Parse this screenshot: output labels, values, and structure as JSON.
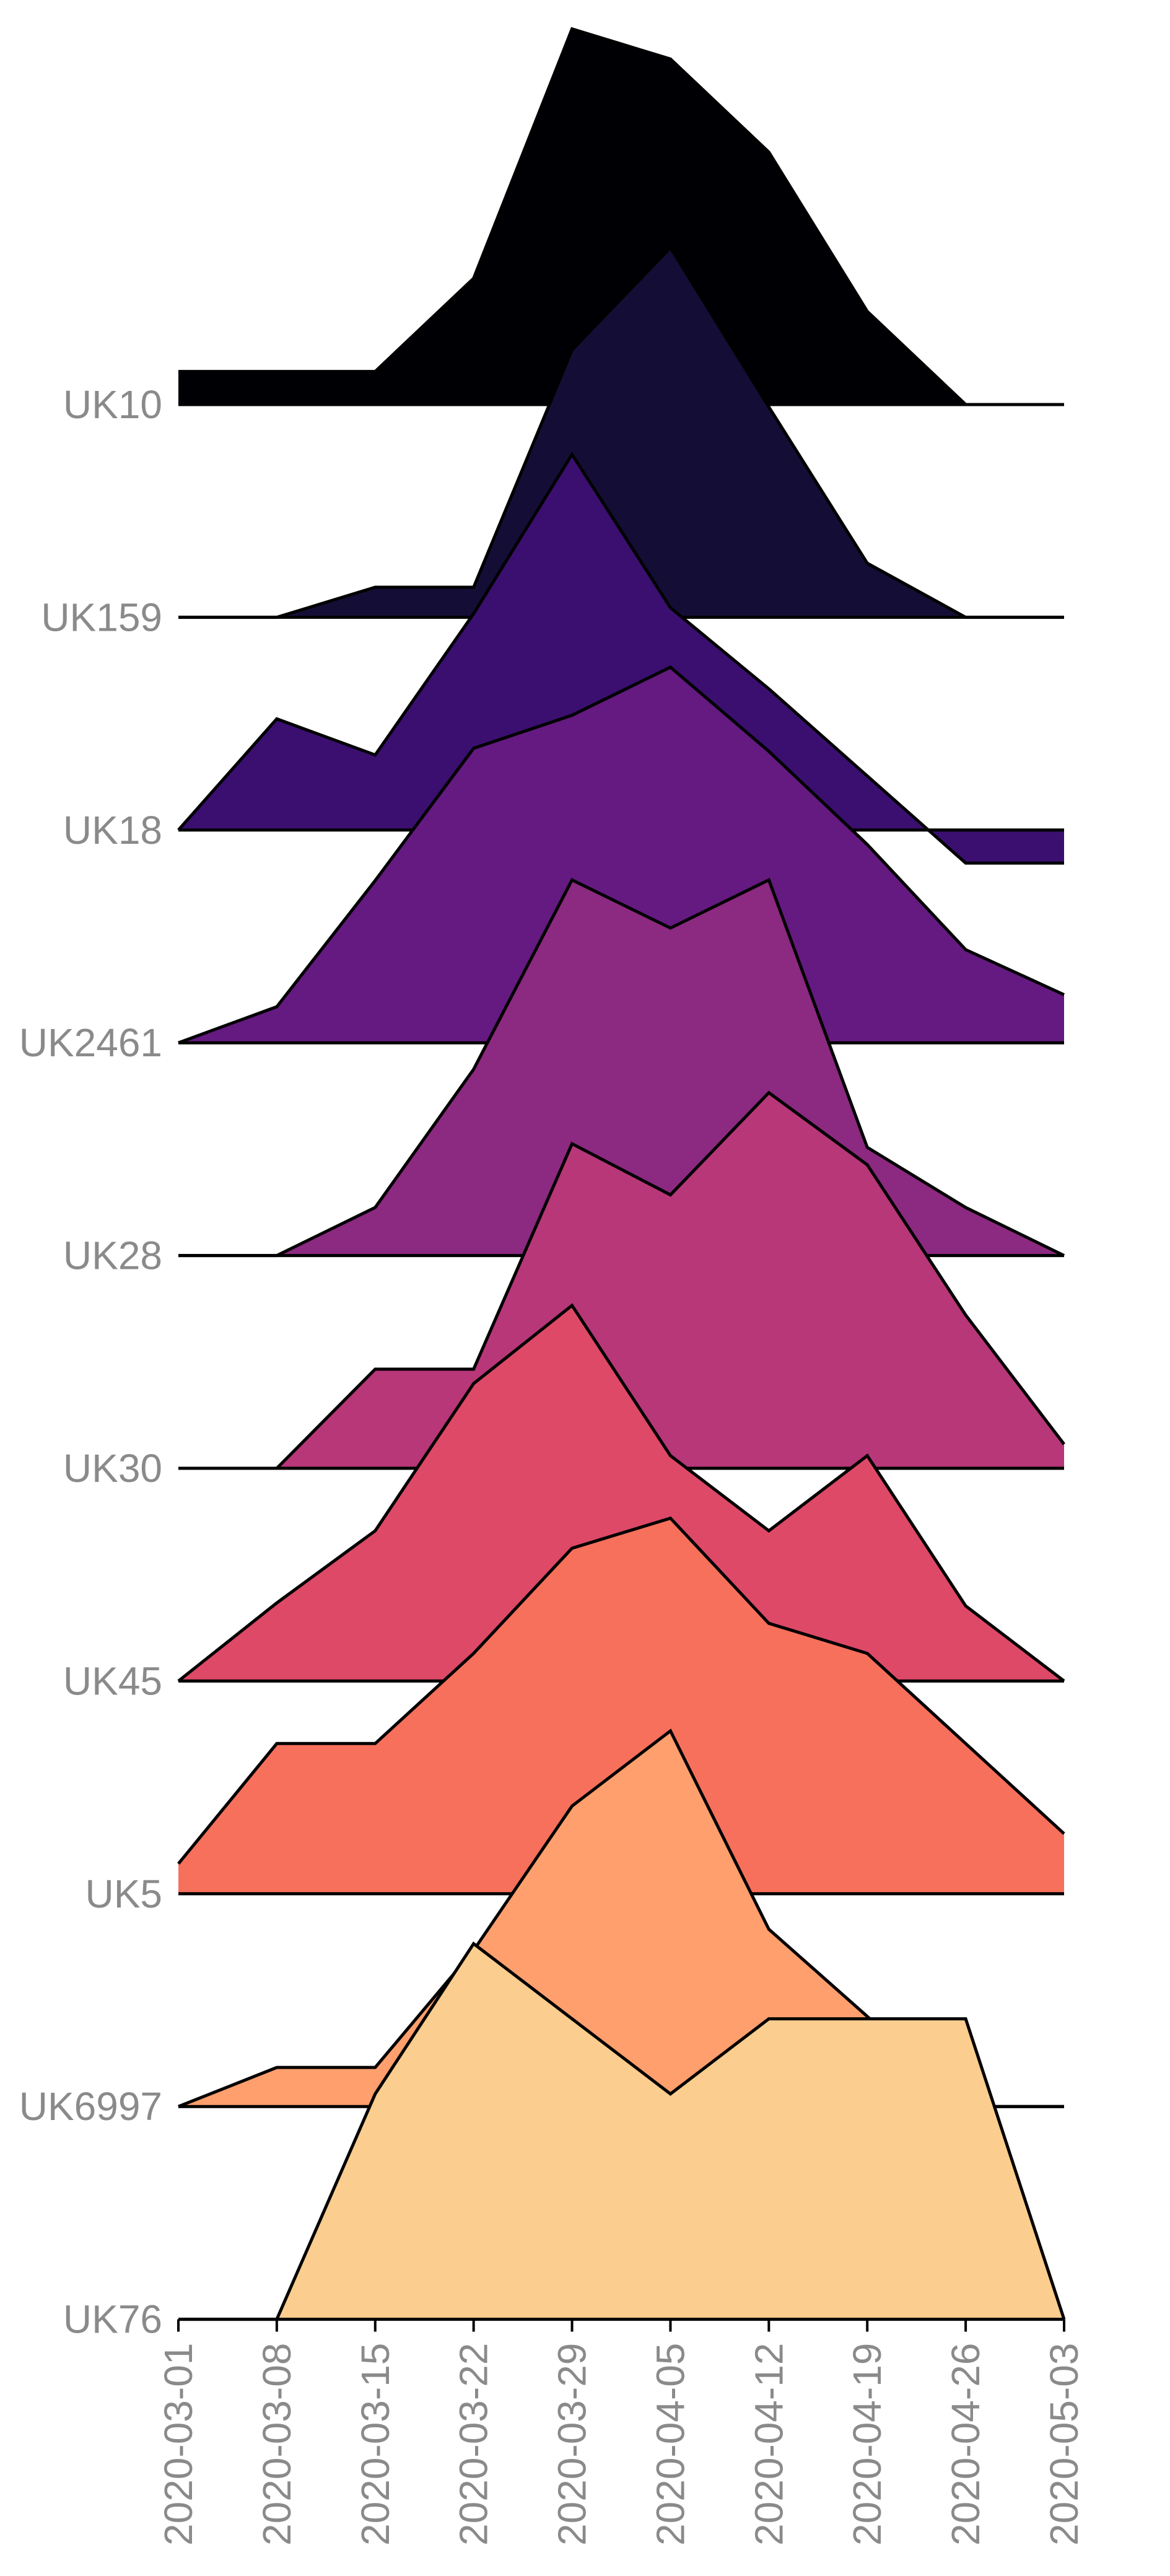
{
  "chart_data": {
    "type": "area",
    "x": [
      "2020-03-01",
      "2020-03-08",
      "2020-03-15",
      "2020-03-22",
      "2020-03-29",
      "2020-04-05",
      "2020-04-12",
      "2020-04-19",
      "2020-04-26",
      "2020-05-03"
    ],
    "series": [
      {
        "name": "UK10",
        "color": "#000004",
        "values": [
          0.11,
          0.11,
          0.11,
          0.42,
          1.25,
          1.15,
          0.84,
          0.31,
          0.0,
          0.0
        ]
      },
      {
        "name": "UK159",
        "color": "#140e36",
        "values": [
          0.0,
          0.0,
          0.1,
          0.1,
          0.89,
          1.23,
          0.7,
          0.18,
          0.0,
          0.0
        ]
      },
      {
        "name": "UK18",
        "color": "#3b0f70",
        "values": [
          0.0,
          0.37,
          0.25,
          0.72,
          1.25,
          0.74,
          0.47,
          0.18,
          -0.11,
          -0.11
        ]
      },
      {
        "name": "UK2461",
        "color": "#641a80",
        "values": [
          0.0,
          0.12,
          0.54,
          0.98,
          1.09,
          1.25,
          0.97,
          0.66,
          0.31,
          0.16
        ]
      },
      {
        "name": "UK28",
        "color": "#8c2981",
        "values": [
          0.0,
          0.0,
          0.16,
          0.62,
          1.25,
          1.09,
          1.25,
          0.36,
          0.16,
          0.0
        ]
      },
      {
        "name": "UK30",
        "color": "#b73779",
        "values": [
          0.0,
          0.0,
          0.33,
          0.33,
          1.08,
          0.91,
          1.25,
          1.01,
          0.51,
          0.08
        ]
      },
      {
        "name": "UK45",
        "color": "#de4968",
        "values": [
          0.0,
          0.26,
          0.5,
          0.99,
          1.25,
          0.75,
          0.5,
          0.75,
          0.25,
          0.0
        ]
      },
      {
        "name": "UK5",
        "color": "#f7705c",
        "values": [
          0.1,
          0.5,
          0.5,
          0.8,
          1.15,
          1.25,
          0.9,
          0.8,
          0.5,
          0.2
        ]
      },
      {
        "name": "UK6997",
        "color": "#fe9f6d",
        "values": [
          0.0,
          0.13,
          0.13,
          0.52,
          1.0,
          1.25,
          0.59,
          0.3,
          0.0,
          0.0
        ]
      },
      {
        "name": "UK76",
        "color": "#fbcd8e",
        "values": [
          0.0,
          0.0,
          0.75,
          1.25,
          1.0,
          0.75,
          1.0,
          1.0,
          1.0,
          0.0
        ]
      }
    ],
    "ylabel": "",
    "xlabel": "",
    "grid": false,
    "legend": "none"
  }
}
